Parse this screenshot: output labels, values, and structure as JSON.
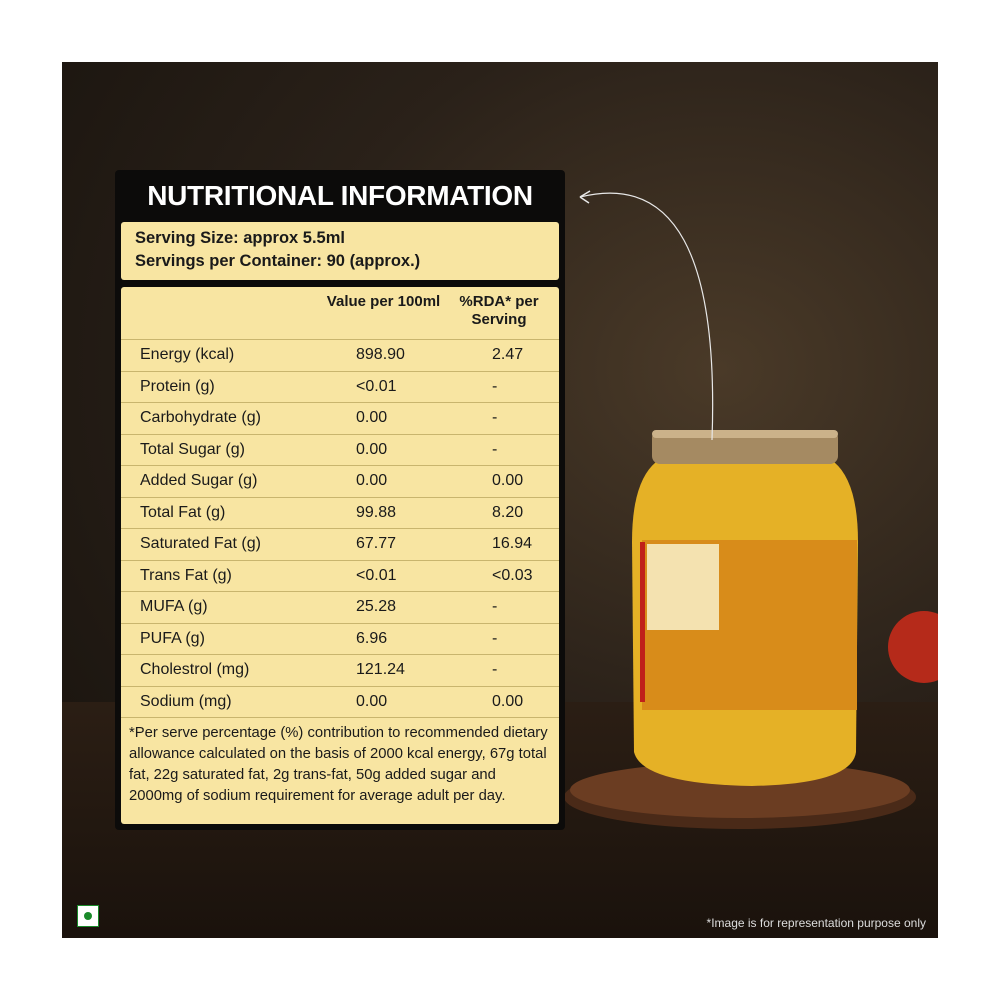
{
  "title": "NUTRITIONAL INFORMATION",
  "serving_size": "Serving Size: approx 5.5ml",
  "servings_per_container": "Servings per Container: 90 (approx.)",
  "columns": {
    "value": "Value per 100ml",
    "rda": "%RDA* per Serving"
  },
  "rows": [
    {
      "nutrient": "Energy (kcal)",
      "value": "898.90",
      "rda": "2.47"
    },
    {
      "nutrient": "Protein (g)",
      "value": "<0.01",
      "rda": "-"
    },
    {
      "nutrient": "Carbohydrate (g)",
      "value": "0.00",
      "rda": "-"
    },
    {
      "nutrient": "Total Sugar (g)",
      "value": "0.00",
      "rda": "-"
    },
    {
      "nutrient": "Added Sugar (g)",
      "value": "0.00",
      "rda": "0.00"
    },
    {
      "nutrient": "Total Fat (g)",
      "value": "99.88",
      "rda": "8.20"
    },
    {
      "nutrient": "Saturated Fat (g)",
      "value": "67.77",
      "rda": "16.94"
    },
    {
      "nutrient": "Trans Fat (g)",
      "value": "<0.01",
      "rda": "<0.03"
    },
    {
      "nutrient": "MUFA (g)",
      "value": "25.28",
      "rda": "-"
    },
    {
      "nutrient": "PUFA (g)",
      "value": "6.96",
      "rda": "-"
    },
    {
      "nutrient": "Cholestrol (mg)",
      "value": "121.24",
      "rda": "-"
    },
    {
      "nutrient": "Sodium (mg)",
      "value": "0.00",
      "rda": "0.00"
    }
  ],
  "footnote": "*Per serve percentage (%) contribution to recommended dietary allowance calculated on the basis of 2000 kcal energy, 67g total fat, 22g saturated fat, 2g trans-fat, 50g added sugar and 2000mg of sodium requirement for average adult per day.",
  "disclaimer": "*Image is for representation purpose only",
  "veg_mark_color": "#1a8a2a"
}
